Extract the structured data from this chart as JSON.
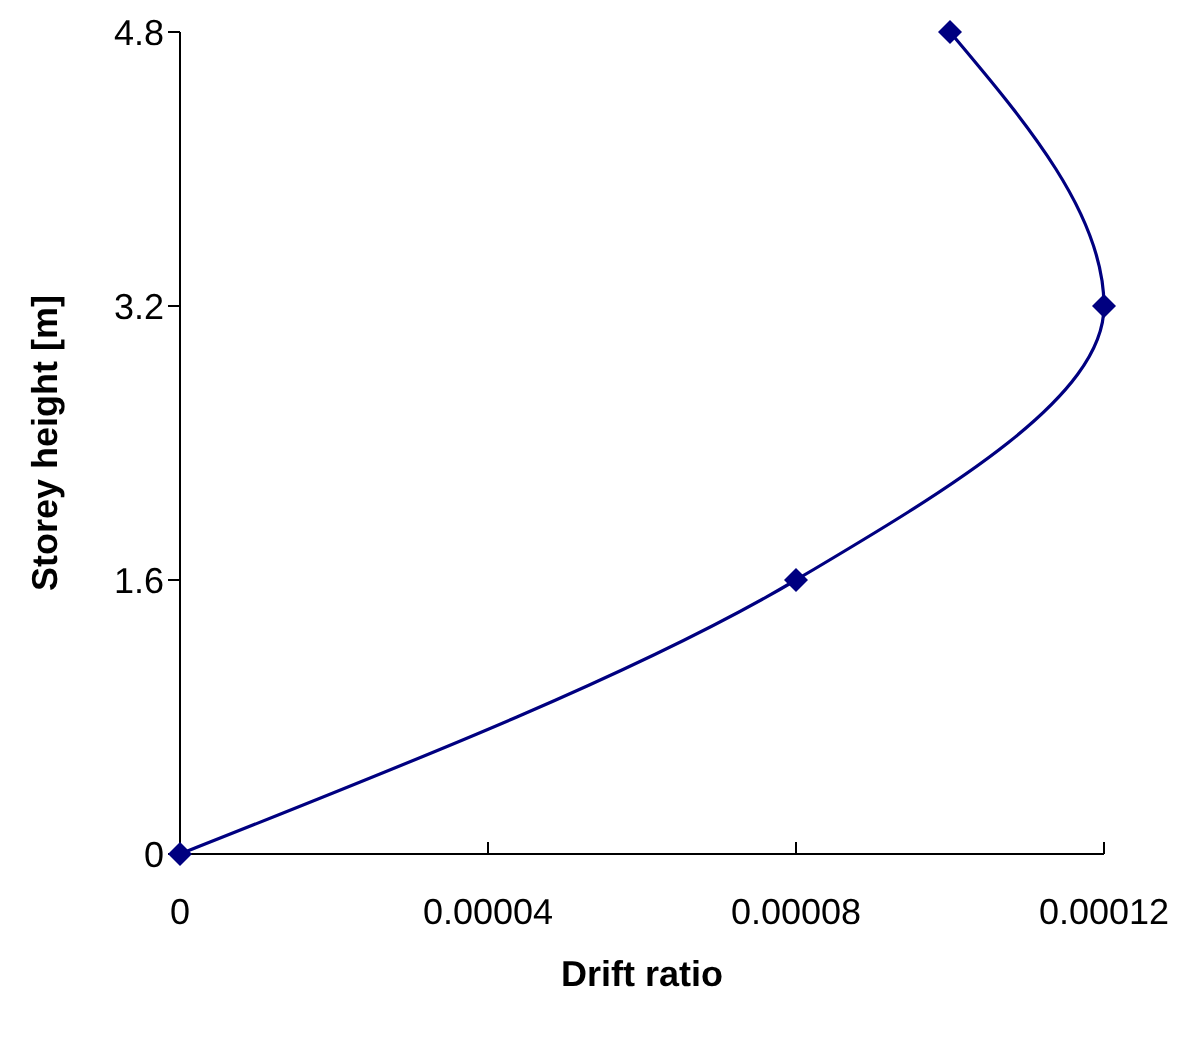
{
  "chart_data": {
    "type": "line",
    "xlabel": "Drift ratio",
    "ylabel": "Storey height [m]",
    "x": [
      0,
      8e-05,
      0.00012,
      0.0001
    ],
    "series": [
      {
        "color": "#000080",
        "values": [
          0,
          1.6,
          3.2,
          4.8
        ]
      }
    ],
    "xlim": [
      0,
      0.00012
    ],
    "xticks": [
      0,
      {
        "value": 4e-05,
        "label": "0.00004"
      },
      {
        "value": 8e-05,
        "label": "0.00008"
      },
      {
        "value": 0.00012,
        "label": "0.00012"
      }
    ],
    "ylim": [
      0,
      4.8
    ],
    "yticks": [
      0,
      1.6,
      3.2,
      4.8
    ],
    "marker": "diamond",
    "grid": false,
    "legend": false
  }
}
